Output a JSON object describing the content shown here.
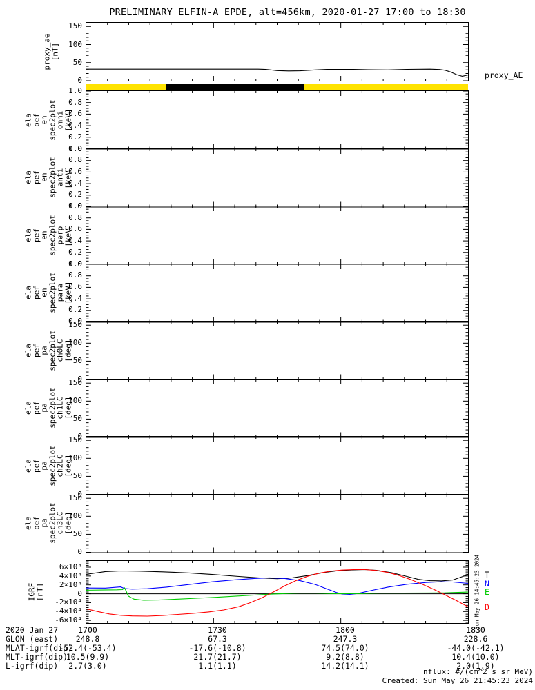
{
  "title": "PRELIMINARY ELFIN-A EPDE, alt=456km, 2020-01-27 17:00 to 18:30",
  "colors": {
    "epoch_day": "#FFE300",
    "epoch_night": "#000000",
    "trace_T": "#000000",
    "trace_N": "#0000FF",
    "trace_E": "#00CC00",
    "trace_D": "#FF0000"
  },
  "chart_data": {
    "type": "line",
    "description": "Multi-panel time-series stack, x axis 17:00-18:30 UT on 2020 Jan 27",
    "x_ticks": [
      "1700",
      "1730",
      "1800",
      "1830"
    ],
    "panels": [
      {
        "id": "proxy-ae",
        "type": "line",
        "ylabel_lines": "proxy_ae\n[nT]",
        "ylim": [
          0,
          160
        ],
        "ytick_values": [
          0,
          50,
          100,
          150
        ],
        "ytick_labels": [
          "0",
          "50",
          "100",
          "150"
        ],
        "minor_step": 10,
        "series_label_from_end": true,
        "series": [
          {
            "name": "proxy_AE",
            "color": "#000000",
            "points": [
              [
                0,
                32
              ],
              [
                0.45,
                32
              ],
              [
                0.47,
                31.5
              ],
              [
                0.5,
                28
              ],
              [
                0.53,
                27
              ],
              [
                0.56,
                27.5
              ],
              [
                0.6,
                30
              ],
              [
                0.63,
                31.5
              ],
              [
                0.7,
                31.5
              ],
              [
                0.74,
                30.5
              ],
              [
                0.79,
                30
              ],
              [
                0.84,
                31.5
              ],
              [
                0.9,
                32
              ],
              [
                0.925,
                31
              ],
              [
                0.94,
                29
              ],
              [
                0.955,
                24
              ],
              [
                0.97,
                17
              ],
              [
                0.985,
                12.5
              ],
              [
                1,
                16
              ]
            ]
          }
        ]
      },
      {
        "id": "epoch-bar",
        "type": "band",
        "segments": [
          {
            "start": 0,
            "end": 0.21,
            "color": "#FFE300"
          },
          {
            "start": 0.21,
            "end": 0.57,
            "color": "#000000"
          },
          {
            "start": 0.57,
            "end": 1,
            "color": "#FFE300"
          }
        ]
      },
      {
        "id": "en-omni",
        "type": "spec",
        "ylabel_lines": "ela\npef\nen\nspec2plot\nomni\n[keV]",
        "ylim": [
          0,
          1
        ],
        "ytick_values": [
          0,
          0.2,
          0.4,
          0.6,
          0.8,
          1
        ],
        "ytick_labels": [
          "0.0",
          "0.2",
          "0.4",
          "0.6",
          "0.8",
          "1.0"
        ],
        "minor_step": 0.05,
        "series": []
      },
      {
        "id": "en-anti",
        "type": "spec",
        "ylabel_lines": "ela\npef\nen\nspec2plot\nanti\n[keV]",
        "ylim": [
          0,
          1
        ],
        "ytick_values": [
          0,
          0.2,
          0.4,
          0.6,
          0.8,
          1
        ],
        "ytick_labels": [
          "0.0",
          "0.2",
          "0.4",
          "0.6",
          "0.8",
          "1.0"
        ],
        "minor_step": 0.05,
        "series": []
      },
      {
        "id": "en-perp",
        "type": "spec",
        "ylabel_lines": "ela\npef\nen\nspec2plot\nperp\n[keV]",
        "ylim": [
          0,
          1
        ],
        "ytick_values": [
          0,
          0.2,
          0.4,
          0.6,
          0.8,
          1
        ],
        "ytick_labels": [
          "0.0",
          "0.2",
          "0.4",
          "0.6",
          "0.8",
          "1.0"
        ],
        "minor_step": 0.05,
        "series": []
      },
      {
        "id": "en-para",
        "type": "spec",
        "ylabel_lines": "ela\npef\nen\nspec2plot\npara\n[keV]",
        "ylim": [
          0,
          1
        ],
        "ytick_values": [
          0,
          0.2,
          0.4,
          0.6,
          0.8,
          1
        ],
        "ytick_labels": [
          "0.0",
          "0.2",
          "0.4",
          "0.6",
          "0.8",
          "1.0"
        ],
        "minor_step": 0.05,
        "series": []
      },
      {
        "id": "pa-ch0lc",
        "type": "spec",
        "ylabel_lines": "ela\npef\npa\nspec2plot\nch0LC\n[deg]",
        "ylim": [
          0,
          160
        ],
        "ytick_values": [
          0,
          50,
          100,
          150
        ],
        "ytick_labels": [
          "0",
          "50",
          "100",
          "150"
        ],
        "minor_step": 10,
        "series": []
      },
      {
        "id": "pa-ch1lc",
        "type": "spec",
        "ylabel_lines": "ela\npef\npa\nspec2plot\nch1LC\n[deg]",
        "ylim": [
          0,
          160
        ],
        "ytick_values": [
          0,
          50,
          100,
          150
        ],
        "ytick_labels": [
          "0",
          "50",
          "100",
          "150"
        ],
        "minor_step": 10,
        "series": []
      },
      {
        "id": "pa-ch2lc",
        "type": "spec",
        "ylabel_lines": "ela\npef\npa\nspec2plot\nch2LC\n[deg]",
        "ylim": [
          0,
          160
        ],
        "ytick_values": [
          0,
          50,
          100,
          150
        ],
        "ytick_labels": [
          "0",
          "50",
          "100",
          "150"
        ],
        "minor_step": 10,
        "series": []
      },
      {
        "id": "pa-ch3lc",
        "type": "spec",
        "ylabel_lines": "ela\npef\npa\nspec2plot\nch3LC\n[deg]",
        "ylim": [
          0,
          160
        ],
        "ytick_values": [
          0,
          50,
          100,
          150
        ],
        "ytick_labels": [
          "0",
          "50",
          "100",
          "150"
        ],
        "minor_step": 10,
        "series": []
      },
      {
        "id": "igrf",
        "type": "line",
        "ylabel_lines": "IGRF\n[nT]",
        "ylim": [
          -66000,
          74000
        ],
        "ytick_values": [
          -60000,
          -40000,
          -20000,
          0,
          20000,
          40000,
          60000
        ],
        "ytick_labels": [
          "-6×10⁴",
          "-4×10⁴",
          "-2×10⁴",
          "0",
          "2×10⁴",
          "4×10⁴",
          "6×10⁴"
        ],
        "minor_step": 5000,
        "zero_line": true,
        "series_label_from_end": true,
        "side_text": "Sun May 26 14:45:23 2024",
        "series": [
          {
            "name": "T",
            "color": "#000000",
            "points": [
              [
                0,
                44000
              ],
              [
                0.05,
                50000
              ],
              [
                0.09,
                51500
              ],
              [
                0.14,
                51000
              ],
              [
                0.2,
                49500
              ],
              [
                0.27,
                47000
              ],
              [
                0.33,
                43500
              ],
              [
                0.4,
                39000
              ],
              [
                0.46,
                35500
              ],
              [
                0.5,
                34000
              ],
              [
                0.54,
                36000
              ],
              [
                0.58,
                41000
              ],
              [
                0.62,
                47500
              ],
              [
                0.66,
                52000
              ],
              [
                0.7,
                54000
              ],
              [
                0.73,
                54500
              ],
              [
                0.76,
                53000
              ],
              [
                0.8,
                47500
              ],
              [
                0.84,
                39000
              ],
              [
                0.87,
                32500
              ],
              [
                0.9,
                29500
              ],
              [
                0.93,
                29000
              ],
              [
                0.96,
                31000
              ],
              [
                1,
                43000
              ]
            ]
          },
          {
            "name": "N",
            "color": "#0000FF",
            "points": [
              [
                0,
                13000
              ],
              [
                0.05,
                12800
              ],
              [
                0.09,
                15500
              ],
              [
                0.1,
                12000
              ],
              [
                0.12,
                10500
              ],
              [
                0.16,
                11500
              ],
              [
                0.21,
                15000
              ],
              [
                0.27,
                21000
              ],
              [
                0.33,
                27000
              ],
              [
                0.39,
                31500
              ],
              [
                0.44,
                34500
              ],
              [
                0.48,
                36000
              ],
              [
                0.52,
                34500
              ],
              [
                0.56,
                29500
              ],
              [
                0.6,
                21000
              ],
              [
                0.63,
                11000
              ],
              [
                0.655,
                3000
              ],
              [
                0.67,
                -500
              ],
              [
                0.69,
                -1500
              ],
              [
                0.71,
                500
              ],
              [
                0.75,
                8000
              ],
              [
                0.79,
                15000
              ],
              [
                0.84,
                21500
              ],
              [
                0.89,
                25500
              ],
              [
                0.93,
                27000
              ],
              [
                0.96,
                26500
              ],
              [
                1,
                23500
              ]
            ]
          },
          {
            "name": "E",
            "color": "#00CC00",
            "points": [
              [
                0,
                8000
              ],
              [
                0.04,
                8500
              ],
              [
                0.08,
                9000
              ],
              [
                0.095,
                9500
              ],
              [
                0.1,
                13500
              ],
              [
                0.105,
                5000
              ],
              [
                0.11,
                -5000
              ],
              [
                0.125,
                -12000
              ],
              [
                0.15,
                -14500
              ],
              [
                0.19,
                -14000
              ],
              [
                0.24,
                -12000
              ],
              [
                0.29,
                -10000
              ],
              [
                0.34,
                -8000
              ],
              [
                0.39,
                -5500
              ],
              [
                0.44,
                -3000
              ],
              [
                0.48,
                -1000
              ],
              [
                0.52,
                500
              ],
              [
                0.56,
                1500
              ],
              [
                0.6,
                1500
              ],
              [
                0.64,
                500
              ],
              [
                0.68,
                0
              ],
              [
                0.72,
                500
              ],
              [
                0.77,
                1500
              ],
              [
                0.83,
                1500
              ],
              [
                0.89,
                1800
              ],
              [
                0.94,
                2200
              ],
              [
                1,
                3800
              ]
            ]
          },
          {
            "name": "D",
            "color": "#FF0000",
            "points": [
              [
                0,
                -34000
              ],
              [
                0.03,
                -40000
              ],
              [
                0.06,
                -45500
              ],
              [
                0.09,
                -48500
              ],
              [
                0.12,
                -50000
              ],
              [
                0.16,
                -50500
              ],
              [
                0.2,
                -49000
              ],
              [
                0.24,
                -46500
              ],
              [
                0.28,
                -44000
              ],
              [
                0.32,
                -41000
              ],
              [
                0.36,
                -36500
              ],
              [
                0.4,
                -29000
              ],
              [
                0.43,
                -20000
              ],
              [
                0.46,
                -9000
              ],
              [
                0.49,
                4000
              ],
              [
                0.52,
                18000
              ],
              [
                0.55,
                30000
              ],
              [
                0.58,
                39500
              ],
              [
                0.61,
                46500
              ],
              [
                0.64,
                51000
              ],
              [
                0.67,
                53500
              ],
              [
                0.7,
                54500
              ],
              [
                0.73,
                54500
              ],
              [
                0.76,
                52500
              ],
              [
                0.79,
                48000
              ],
              [
                0.82,
                41000
              ],
              [
                0.85,
                32000
              ],
              [
                0.88,
                21500
              ],
              [
                0.91,
                10000
              ],
              [
                0.94,
                -2500
              ],
              [
                0.97,
                -15500
              ],
              [
                1,
                -29500
              ]
            ]
          }
        ]
      }
    ]
  },
  "bottom_axis": {
    "date_label": "2020 Jan 27",
    "time_ticks": [
      "1700",
      "1730",
      "1800",
      "1830"
    ],
    "rows": [
      {
        "label": "GLON (east)",
        "values": [
          "248.8",
          "67.3",
          "247.3",
          "228.6"
        ]
      },
      {
        "label": "MLAT-igrf(dip)",
        "values": [
          "-52.4(-53.4)",
          "-17.6(-10.8)",
          "74.5(74.0)",
          "-44.0(-42.1)"
        ]
      },
      {
        "label": "MLT-igrf(dip)",
        "values": [
          "10.5(9.9)",
          "21.7(21.7)",
          "9.2(8.8)",
          "10.4(10.0)"
        ]
      },
      {
        "label": "L-igrf(dip)",
        "values": [
          "2.7(3.0)",
          "1.1(1.1)",
          "14.2(14.1)",
          "2.0(1.9)"
        ]
      }
    ]
  },
  "footer": {
    "units_note": "nflux: #/(cm^2 s sr MeV)",
    "created": "Created: Sun May 26 21:45:23 2024"
  }
}
